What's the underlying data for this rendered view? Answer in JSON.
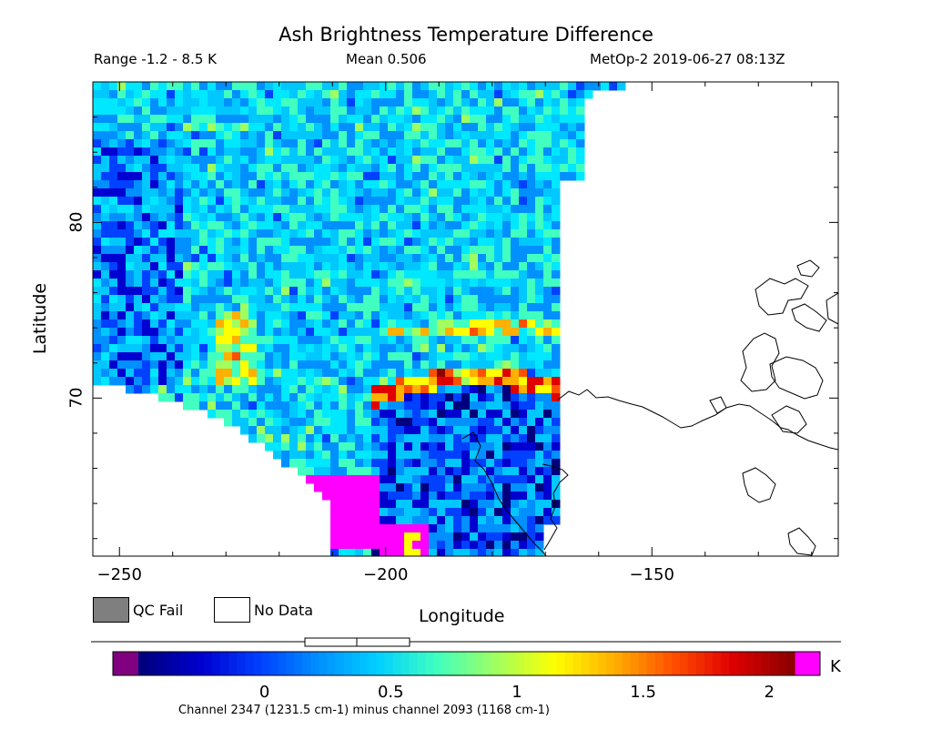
{
  "header": {
    "title": "Ash Brightness Temperature Difference",
    "range": "Range -1.2 - 8.5 K",
    "mean": "Mean 0.506",
    "satellite_time": "MetOp-2 2019-06-27 08:13Z"
  },
  "map": {
    "x_axis_label": "Longitude",
    "y_axis_label": "Latitude",
    "x_range": [
      -255,
      -115
    ],
    "y_range": [
      61,
      88
    ],
    "x_ticks": [
      {
        "value": -250,
        "label": "−250"
      },
      {
        "value": -200,
        "label": "−200"
      },
      {
        "value": -150,
        "label": "−150"
      }
    ],
    "y_ticks": [
      {
        "value": 70,
        "label": "70"
      },
      {
        "value": 80,
        "label": "80"
      }
    ]
  },
  "legend": {
    "qc_fail_label": "QC Fail",
    "no_data_label": "No Data",
    "qc_fail_color": "#7f7f7f",
    "no_data_color": "#ffffff"
  },
  "colorbar": {
    "unit": "K",
    "range": [
      -0.5,
      2.1
    ],
    "underflow_color": "#800080",
    "overflow_color": "#ff00ff",
    "colors": [
      "#00007f",
      "#0000d0",
      "#0040ff",
      "#0090ff",
      "#00d0ff",
      "#40ffc0",
      "#a0ff60",
      "#ffff00",
      "#ffb000",
      "#ff5000",
      "#e00000",
      "#900000"
    ],
    "ticks": [
      {
        "value": 0,
        "label": "0"
      },
      {
        "value": 0.5,
        "label": "0.5"
      },
      {
        "value": 1,
        "label": "1"
      },
      {
        "value": 1.5,
        "label": "1.5"
      },
      {
        "value": 2,
        "label": "2"
      }
    ],
    "caption": "Channel 2347 (1231.5 cm-1) minus channel 2093 (1168 cm-1)"
  }
}
